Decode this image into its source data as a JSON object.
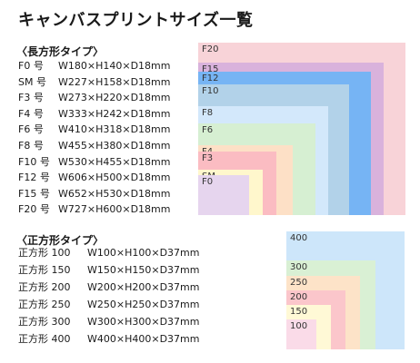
{
  "title": "キャンバスプリントサイズ一覧",
  "rect": {
    "heading": "〈長方形タイプ〉",
    "items": [
      {
        "name": "F0 号",
        "dims": "W180×H140×D18mm"
      },
      {
        "name": "SM 号",
        "dims": "W227×H158×D18mm"
      },
      {
        "name": "F3 号",
        "dims": "W273×H220×D18mm"
      },
      {
        "name": "F4 号",
        "dims": "W333×H242×D18mm"
      },
      {
        "name": "F6 号",
        "dims": "W410×H318×D18mm"
      },
      {
        "name": "F8 号",
        "dims": "W455×H380×D18mm"
      },
      {
        "name": "F10 号",
        "dims": "W530×H455×D18mm"
      },
      {
        "name": "F12 号",
        "dims": "W606×H500×D18mm"
      },
      {
        "name": "F15 号",
        "dims": "W652×H530×D18mm"
      },
      {
        "name": "F20 号",
        "dims": "W727×H600×D18mm"
      }
    ],
    "boxes": [
      {
        "label": "F20",
        "w_mm": 727,
        "h_mm": 600,
        "color": "#f8d3d8"
      },
      {
        "label": "F15",
        "w_mm": 652,
        "h_mm": 530,
        "color": "#d9b2dc"
      },
      {
        "label": "F12",
        "w_mm": 606,
        "h_mm": 500,
        "color": "#76b4f4"
      },
      {
        "label": "F10",
        "w_mm": 530,
        "h_mm": 455,
        "color": "#b2d2e9"
      },
      {
        "label": "F8",
        "w_mm": 455,
        "h_mm": 380,
        "color": "#d3e8fb"
      },
      {
        "label": "F6",
        "w_mm": 410,
        "h_mm": 318,
        "color": "#d6efd2"
      },
      {
        "label": "F4",
        "w_mm": 333,
        "h_mm": 242,
        "color": "#fde0c6"
      },
      {
        "label": "F3",
        "w_mm": 273,
        "h_mm": 220,
        "color": "#fbbcc2"
      },
      {
        "label": "SM",
        "w_mm": 227,
        "h_mm": 158,
        "color": "#fff7cc"
      },
      {
        "label": "F0",
        "w_mm": 180,
        "h_mm": 140,
        "color": "#e6d5ee"
      }
    ]
  },
  "square": {
    "heading": "〈正方形タイプ〉",
    "items": [
      {
        "name": "正方形 100",
        "dims": "W100×H100×D37mm"
      },
      {
        "name": "正方形 150",
        "dims": "W150×H150×D37mm"
      },
      {
        "name": "正方形 200",
        "dims": "W200×H200×D37mm"
      },
      {
        "name": "正方形 250",
        "dims": "W250×H250×D37mm"
      },
      {
        "name": "正方形 300",
        "dims": "W300×H300×D37mm"
      },
      {
        "name": "正方形 400",
        "dims": "W400×H400×D37mm"
      }
    ],
    "boxes": [
      {
        "label": "400",
        "w_mm": 400,
        "h_mm": 400,
        "color": "#cde6fa"
      },
      {
        "label": "300",
        "w_mm": 300,
        "h_mm": 300,
        "color": "#d9f0d4"
      },
      {
        "label": "250",
        "w_mm": 250,
        "h_mm": 250,
        "color": "#fde3c8"
      },
      {
        "label": "200",
        "w_mm": 200,
        "h_mm": 200,
        "color": "#fbc6cb"
      },
      {
        "label": "150",
        "w_mm": 150,
        "h_mm": 150,
        "color": "#fff9d6"
      },
      {
        "label": "100",
        "w_mm": 100,
        "h_mm": 100,
        "color": "#fadbe8"
      }
    ]
  }
}
